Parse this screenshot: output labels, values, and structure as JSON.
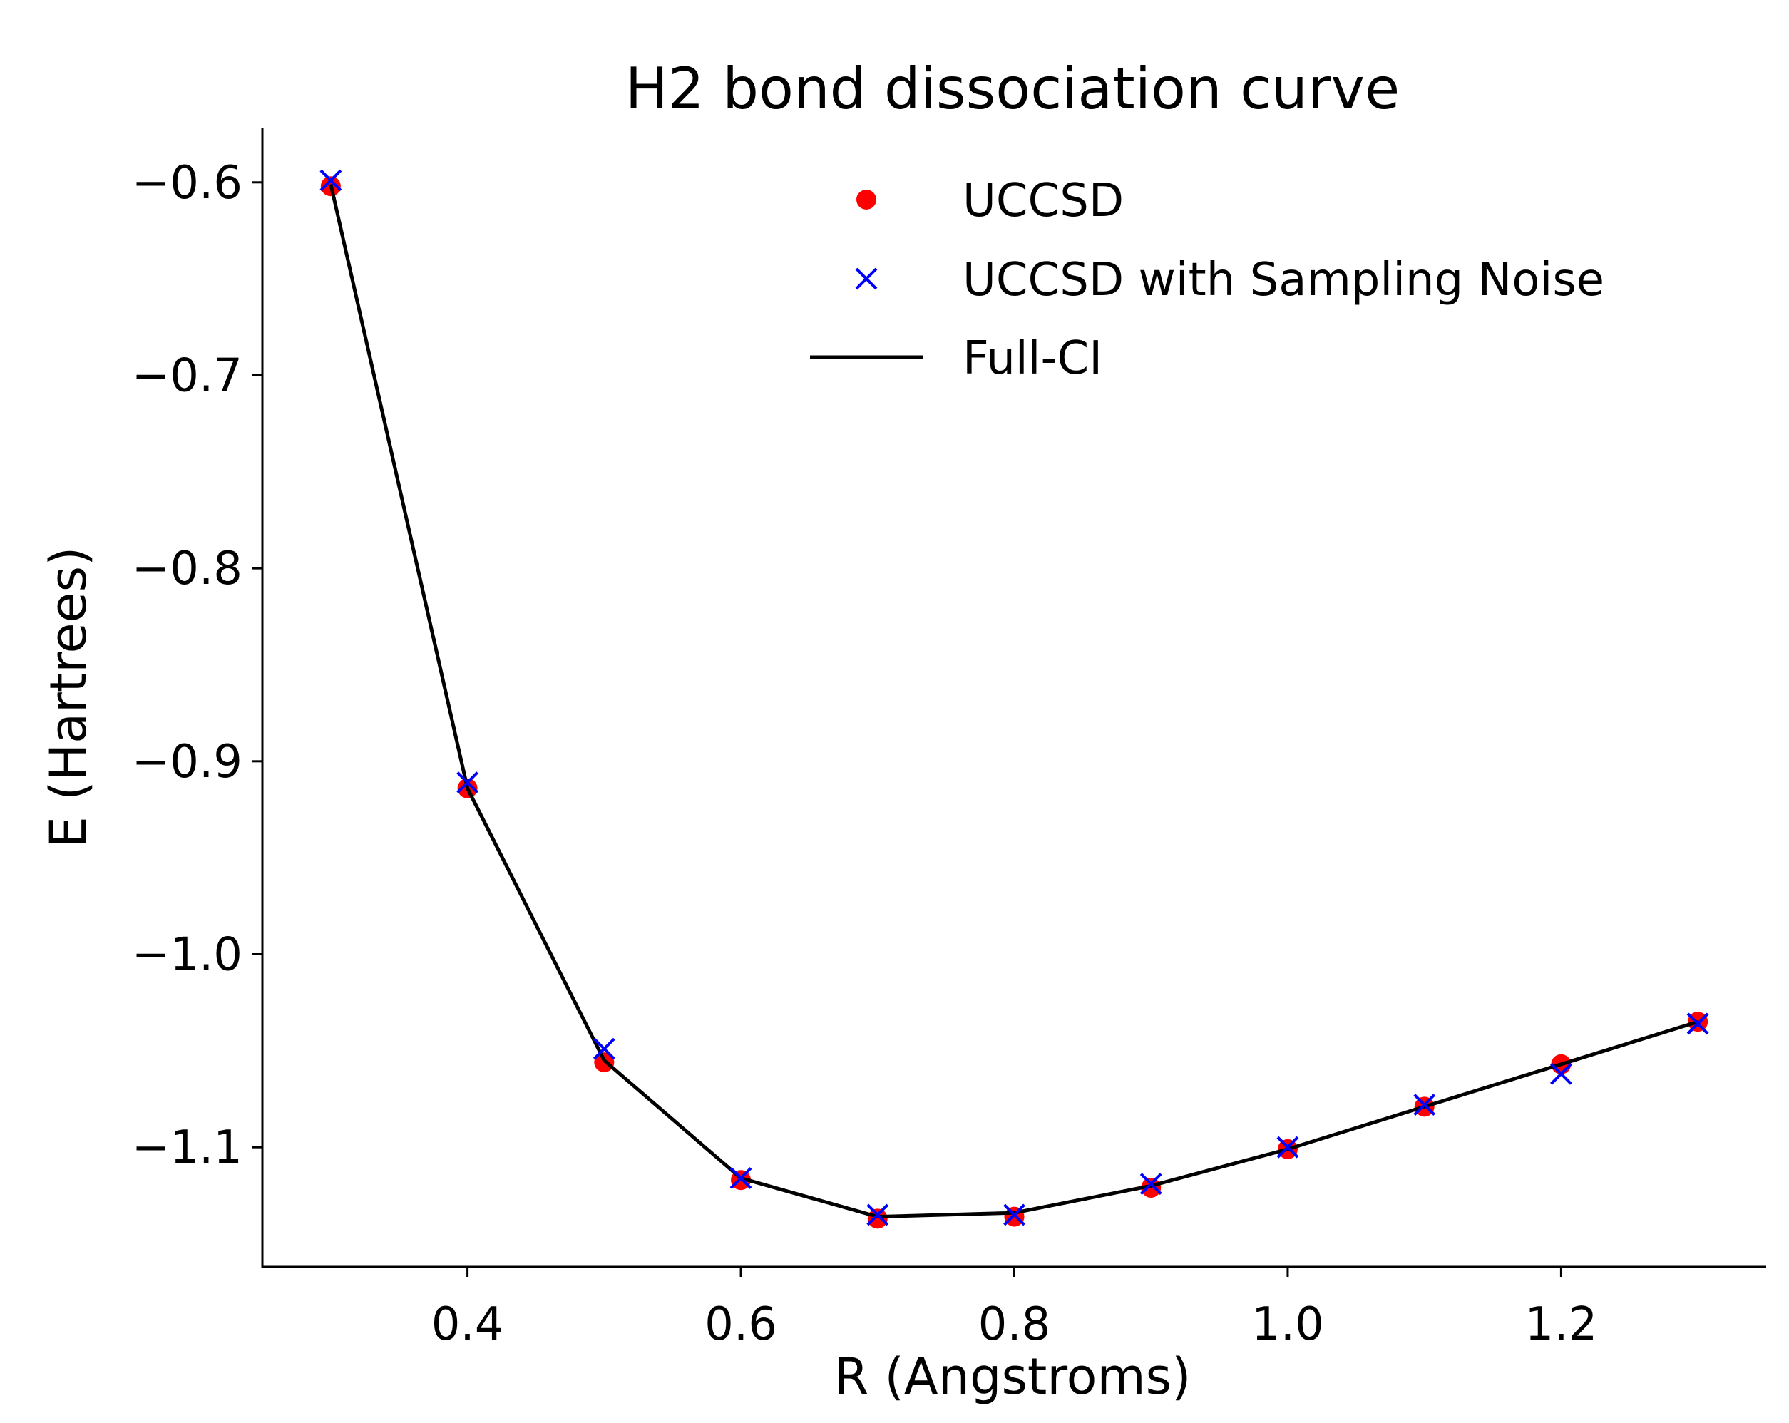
{
  "chart_data": {
    "type": "line",
    "title": "H2 bond dissociation curve",
    "xlabel": "R (Angstroms)",
    "ylabel": "E (Hartrees)",
    "xlim": [
      0.25,
      1.35
    ],
    "ylim": [
      -1.162,
      -0.572
    ],
    "xticks": [
      0.4,
      0.6,
      0.8,
      1.0,
      1.2
    ],
    "xtick_labels": [
      "0.4",
      "0.6",
      "0.8",
      "1.0",
      "1.2"
    ],
    "yticks": [
      -0.6,
      -0.7,
      -0.8,
      -0.9,
      -1.0,
      -1.1
    ],
    "ytick_labels": [
      "−0.6",
      "−0.7",
      "−0.8",
      "−0.9",
      "−1.0",
      "−1.1"
    ],
    "grid": false,
    "legend_position": "top-right",
    "series": [
      {
        "name": "UCCSD",
        "kind": "scatter",
        "marker": "circle",
        "color": "#ff0000",
        "x": [
          0.3,
          0.4,
          0.5,
          0.6,
          0.7,
          0.8,
          0.9,
          1.0,
          1.1,
          1.2,
          1.3
        ],
        "y": [
          -0.602,
          -0.914,
          -1.056,
          -1.117,
          -1.137,
          -1.136,
          -1.121,
          -1.101,
          -1.079,
          -1.057,
          -1.035
        ]
      },
      {
        "name": "UCCSD with Sampling Noise",
        "kind": "scatter",
        "marker": "x",
        "color": "#0000ff",
        "x": [
          0.3,
          0.4,
          0.5,
          0.6,
          0.7,
          0.8,
          0.9,
          1.0,
          1.1,
          1.2,
          1.3
        ],
        "y": [
          -0.599,
          -0.911,
          -1.049,
          -1.116,
          -1.135,
          -1.135,
          -1.119,
          -1.1,
          -1.078,
          -1.062,
          -1.036
        ]
      },
      {
        "name": "Full-CI",
        "kind": "line",
        "color": "#000000",
        "x": [
          0.3,
          0.4,
          0.5,
          0.6,
          0.7,
          0.8,
          0.9,
          1.0,
          1.1,
          1.2,
          1.3
        ],
        "y": [
          -0.601,
          -0.914,
          -1.055,
          -1.116,
          -1.136,
          -1.134,
          -1.12,
          -1.101,
          -1.079,
          -1.057,
          -1.035
        ]
      }
    ]
  }
}
